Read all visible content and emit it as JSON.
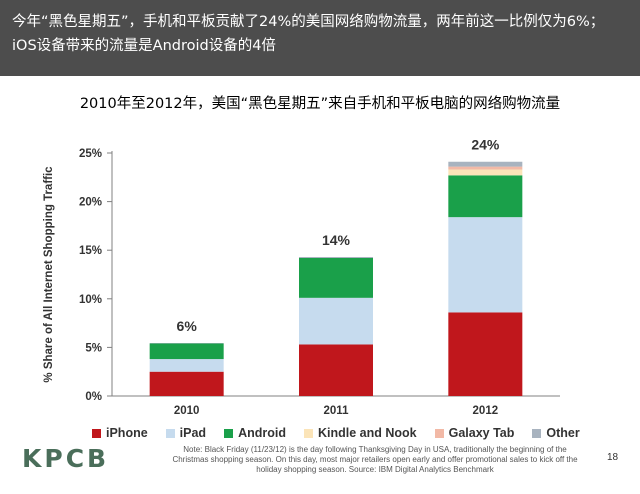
{
  "header": {
    "line1": "今年“黑色星期五”，手机和平板贡献了24%的美国网络购物流量，两年前这一比例仅为6%；",
    "line2": "iOS设备带来的流量是Android设备的4倍"
  },
  "logo": "KPCB",
  "footer": {
    "note_line1": "Note: Black Friday (11/23/12) is the day following Thanksgiving Day in USA, traditionally the beginning of the",
    "note_line2": "Christmas shopping season. On this day, most major retailers open early and offer promotional sales to kick off the",
    "note_line3": "holiday shopping season. Source: IBM Digital Analytics Benchmark",
    "page_number": "18"
  },
  "chart_data": {
    "type": "bar",
    "stacked": true,
    "title": "2010年至2012年，美国“黑色星期五”来自手机和平板电脑的网络购物流量",
    "xlabel": "",
    "ylabel": "% Share of All Internet Shopping Traffic",
    "categories": [
      "2010",
      "2011",
      "2012"
    ],
    "ylim": [
      0,
      25
    ],
    "yticks": [
      "0%",
      "5%",
      "10%",
      "15%",
      "20%",
      "25%"
    ],
    "totals": [
      "6%",
      "14%",
      "24%"
    ],
    "grid": false,
    "legend_position": "bottom",
    "series": [
      {
        "name": "iPhone",
        "color": "#c0171c",
        "values": [
          2.5,
          5.3,
          8.6
        ]
      },
      {
        "name": "iPad",
        "color": "#c6dbee",
        "values": [
          1.3,
          4.8,
          9.8
        ]
      },
      {
        "name": "Android",
        "color": "#1aa04a",
        "values": [
          1.6,
          4.1,
          4.3
        ]
      },
      {
        "name": "Kindle and Nook",
        "color": "#fbe4b8",
        "values": [
          0,
          0,
          0.6
        ]
      },
      {
        "name": "Galaxy Tab",
        "color": "#f2b9a6",
        "values": [
          0,
          0,
          0.3
        ]
      },
      {
        "name": "Other",
        "color": "#a8b3bf",
        "values": [
          0.05,
          0.1,
          0.5
        ]
      }
    ]
  }
}
